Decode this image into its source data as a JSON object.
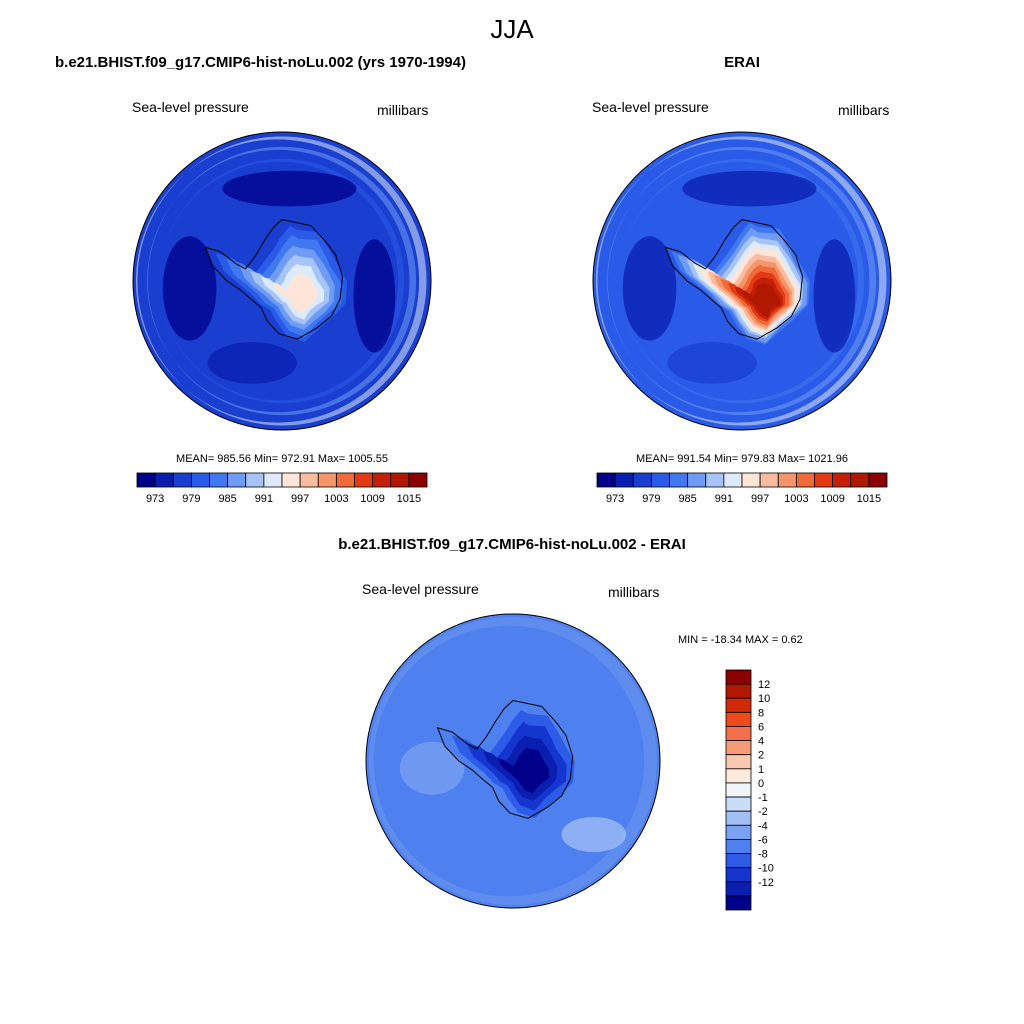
{
  "figure": {
    "title": "JJA"
  },
  "panels": {
    "model": {
      "title": "b.e21.BHIST.f09_g17.CMIP6-hist-noLu.002 (yrs 1970-1994)",
      "left_label": "Sea-level pressure",
      "right_label": "millibars",
      "stats": "MEAN= 985.56  Min= 972.91  Max= 1005.55",
      "map": {
        "ocean_level": 2,
        "pole_level": 8,
        "ring_pattern": "low-ring",
        "lows": "deep",
        "map_icon": "polar-stereographic-antarctica-map"
      }
    },
    "erai": {
      "title": "ERAI",
      "left_label": "Sea-level pressure",
      "right_label": "millibars",
      "stats": "MEAN= 991.54  Min= 979.83  Max= 1021.96",
      "map": {
        "ocean_level": 3,
        "pole_level": 14,
        "ring_pattern": "low-ring",
        "lows": "moderate",
        "map_icon": "polar-stereographic-antarctica-map"
      }
    },
    "diff": {
      "title": "b.e21.BHIST.f09_g17.CMIP6-hist-noLu.002 - ERAI",
      "left_label": "Sea-level pressure",
      "right_label": "millibars",
      "stats": "MIN = -18.34 MAX =   0.62",
      "map": {
        "ocean_level": 4,
        "pole_level": 0,
        "ring_pattern": "weak",
        "lows": "none",
        "map_icon": "polar-stereographic-antarctica-map"
      }
    }
  },
  "colorbars": {
    "abs": {
      "colors": [
        "#00008b",
        "#0a1fb0",
        "#1a3fd0",
        "#2a5ae8",
        "#3f78f0",
        "#6f9bf5",
        "#a7c4f8",
        "#ddeafc",
        "#fde5d8",
        "#f9bca0",
        "#f5956a",
        "#f06a3a",
        "#e43a14",
        "#c42008",
        "#b01800",
        "#8b0000"
      ],
      "tick_labels": [
        "973",
        "979",
        "985",
        "991",
        "997",
        "1003",
        "1009",
        "1015"
      ]
    },
    "diff": {
      "colors": [
        "#8b0000",
        "#b01800",
        "#d02a08",
        "#ee4a1a",
        "#f47048",
        "#f79a78",
        "#fac8b0",
        "#fdeadd",
        "#f0f4fb",
        "#c9dcf8",
        "#a2c0f5",
        "#7aa2f2",
        "#4f80ef",
        "#2c5ce8",
        "#1436cf",
        "#0a1fb0",
        "#00008b"
      ],
      "tick_labels": [
        "12",
        "10",
        "8",
        "6",
        "4",
        "2",
        "1",
        "0",
        "-1",
        "-2",
        "-4",
        "-6",
        "-8",
        "-10",
        "-12"
      ]
    }
  }
}
